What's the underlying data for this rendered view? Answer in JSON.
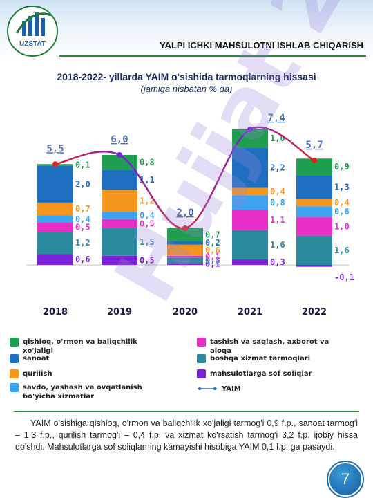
{
  "header": {
    "logo_text": "UZSTAT",
    "title": "YALPI ICHKI MAHSULOTNI ISHLAB CHIQARISH"
  },
  "watermark": "Hujjat 24",
  "colors": {
    "qishloq": "#1e9e4e",
    "sanoat": "#1f6fc0",
    "qurilish": "#f5961e",
    "savdo": "#3ea3ef",
    "tashish": "#e830c8",
    "boshqa": "#2c8a9e",
    "soliq": "#7a22d6",
    "yaim": "#e02222"
  },
  "chart_data": {
    "type": "bar",
    "title": "2018-2022- yillarda YAIM o'sishida tarmoqlarning hissasi",
    "subtitle": "(jamiga nisbatan % da)",
    "categories": [
      "2018",
      "2019",
      "2020",
      "2021",
      "2022"
    ],
    "series": [
      {
        "key": "soliq",
        "name": "mahsulotlarga sof soliqlar",
        "values": [
          0.6,
          0.5,
          0.1,
          0.3,
          -0.1
        ],
        "labels": [
          "0,6",
          "0,5",
          "0,1",
          "0,3",
          "-0,1"
        ]
      },
      {
        "key": "boshqa",
        "name": "boshqa xizmat tarmoqlari",
        "values": [
          1.2,
          1.5,
          0.3,
          1.6,
          1.6
        ],
        "labels": [
          "1,2",
          "1,5",
          "0,3",
          "1,6",
          "1,6"
        ]
      },
      {
        "key": "tashish",
        "name": "tashish va saqlash, axborot va aloqa",
        "values": [
          0.5,
          0.5,
          0.1,
          1.1,
          1.0
        ],
        "labels": [
          "0,5",
          "0,5",
          "0,1",
          "1,1",
          "1,0"
        ]
      },
      {
        "key": "savdo",
        "name": "savdo, yashash va ovqatlanish bo'yicha xizmatlar",
        "values": [
          0.4,
          0.4,
          0.0,
          0.8,
          0.6
        ],
        "labels": [
          "0,4",
          "0,4",
          "",
          "0,8",
          "0,6"
        ]
      },
      {
        "key": "qurilish",
        "name": "qurilish",
        "values": [
          0.7,
          1.2,
          0.6,
          0.4,
          0.4
        ],
        "labels": [
          "0,7",
          "1,2",
          "0,6",
          "0,4",
          "0,4"
        ]
      },
      {
        "key": "sanoat",
        "name": "sanoat",
        "values": [
          2.0,
          1.1,
          0.2,
          2.2,
          1.3
        ],
        "labels": [
          "2,0",
          "1,1",
          "0,2",
          "2,2",
          "1,3"
        ]
      },
      {
        "key": "qishloq",
        "name": "qishloq, o'rmon va baliqchilik xo'jaligi",
        "values": [
          0.1,
          0.8,
          0.7,
          1.0,
          0.9
        ],
        "labels": [
          "0,1",
          "0,8",
          "0,7",
          "1,0",
          "0,9"
        ]
      }
    ],
    "line": {
      "key": "yaim",
      "name": "YAIM",
      "values": [
        5.5,
        6.0,
        2.0,
        7.4,
        5.7
      ],
      "labels": [
        "5,5",
        "6,0",
        "2,0",
        "7,4",
        "5,7"
      ]
    },
    "ylim": [
      -0.2,
      8.0
    ],
    "grid": false,
    "legend": "bottom"
  },
  "legend": [
    {
      "key": "qishloq",
      "label": "qishloq, o'rmon va baliqchilik xo'jaligi"
    },
    {
      "key": "sanoat",
      "label": "sanoat"
    },
    {
      "key": "qurilish",
      "label": "qurilish"
    },
    {
      "key": "savdo",
      "label": "savdo, yashash va ovqatlanish bo'yicha xizmatlar"
    },
    {
      "key": "tashish",
      "label": "tashish va saqlash, axborot va aloqa"
    },
    {
      "key": "boshqa",
      "label": "boshqa xizmat tarmoqlari"
    },
    {
      "key": "soliq",
      "label": "mahsulotlarga sof soliqlar"
    },
    {
      "key": "yaim",
      "label": "YAIM"
    }
  ],
  "description": "YAIM o'sishiga qishloq, o'rmon va baliqchilik xo'jaligi tarmog'i 0,9 f.p., sanoat tarmog'i – 1,3 f.p., qurilish tarmog'i – 0,4 f.p. va xizmat ko'rsatish tarmog'i 3,2 f.p. ijobiy hissa qo'shdi. Mahsulotlarga sof soliqlarning kamayishi hisobiga YAIM 0,1 f.p. ga pasaydi.",
  "page_number": "7"
}
